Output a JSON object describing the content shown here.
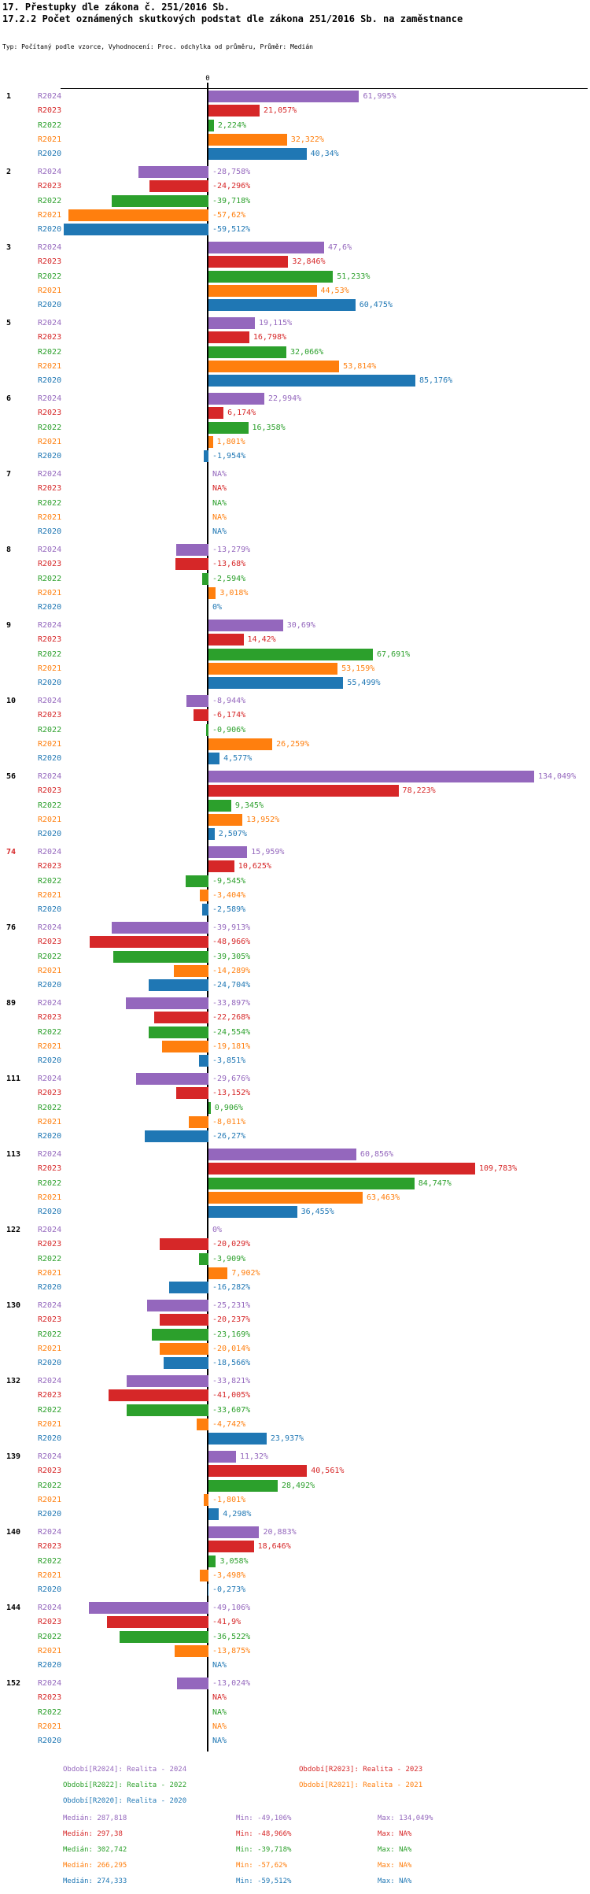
{
  "header": {
    "title": "17. Přestupky dle zákona č. 251/2016 Sb.",
    "subtitle": "17.2.2 Počet oznámených skutkových podstat dle zákona 251/2016 Sb. na zaměstnance",
    "meta": "Typ: Počítaný podle vzorce, Vyhodnocení: Proc. odchylka od průměru, Průměr: Medián"
  },
  "axis": {
    "zero_label": "0"
  },
  "chart_data": {
    "type": "bar",
    "orientation": "horizontal",
    "value_unit": "%",
    "axis_note": "values are percent deviation from median; bars left of zero line are negative",
    "series": [
      {
        "name": "R2024",
        "color": "#9467bd"
      },
      {
        "name": "R2023",
        "color": "#d62728"
      },
      {
        "name": "R2022",
        "color": "#2ca02c"
      },
      {
        "name": "R2021",
        "color": "#ff7f0e"
      },
      {
        "name": "R2020",
        "color": "#1f77b4"
      }
    ],
    "groups": [
      {
        "id": "1",
        "id_color": "#000000",
        "bars": [
          {
            "series": "R2024",
            "value": 61.995,
            "label": "61,995%"
          },
          {
            "series": "R2023",
            "value": 21.057,
            "label": "21,057%"
          },
          {
            "series": "R2022",
            "value": 2.224,
            "label": "2,224%"
          },
          {
            "series": "R2021",
            "value": 32.322,
            "label": "32,322%"
          },
          {
            "series": "R2020",
            "value": 40.34,
            "label": "40,34%"
          }
        ]
      },
      {
        "id": "2",
        "id_color": "#000000",
        "bars": [
          {
            "series": "R2024",
            "value": -28.758,
            "label": "-28,758%"
          },
          {
            "series": "R2023",
            "value": -24.296,
            "label": "-24,296%"
          },
          {
            "series": "R2022",
            "value": -39.718,
            "label": "-39,718%"
          },
          {
            "series": "R2021",
            "value": -57.62,
            "label": "-57,62%"
          },
          {
            "series": "R2020",
            "value": -59.512,
            "label": "-59,512%"
          }
        ]
      },
      {
        "id": "3",
        "id_color": "#000000",
        "bars": [
          {
            "series": "R2024",
            "value": 47.6,
            "label": "47,6%"
          },
          {
            "series": "R2023",
            "value": 32.846,
            "label": "32,846%"
          },
          {
            "series": "R2022",
            "value": 51.233,
            "label": "51,233%"
          },
          {
            "series": "R2021",
            "value": 44.53,
            "label": "44,53%"
          },
          {
            "series": "R2020",
            "value": 60.475,
            "label": "60,475%"
          }
        ]
      },
      {
        "id": "5",
        "id_color": "#000000",
        "bars": [
          {
            "series": "R2024",
            "value": 19.115,
            "label": "19,115%"
          },
          {
            "series": "R2023",
            "value": 16.798,
            "label": "16,798%"
          },
          {
            "series": "R2022",
            "value": 32.066,
            "label": "32,066%"
          },
          {
            "series": "R2021",
            "value": 53.814,
            "label": "53,814%"
          },
          {
            "series": "R2020",
            "value": 85.176,
            "label": "85,176%"
          }
        ]
      },
      {
        "id": "6",
        "id_color": "#000000",
        "bars": [
          {
            "series": "R2024",
            "value": 22.994,
            "label": "22,994%"
          },
          {
            "series": "R2023",
            "value": 6.174,
            "label": "6,174%"
          },
          {
            "series": "R2022",
            "value": 16.358,
            "label": "16,358%"
          },
          {
            "series": "R2021",
            "value": 1.801,
            "label": "1,801%"
          },
          {
            "series": "R2020",
            "value": -1.954,
            "label": "-1,954%"
          }
        ]
      },
      {
        "id": "7",
        "id_color": "#000000",
        "bars": [
          {
            "series": "R2024",
            "value": null,
            "label": "NA%"
          },
          {
            "series": "R2023",
            "value": null,
            "label": "NA%"
          },
          {
            "series": "R2022",
            "value": null,
            "label": "NA%"
          },
          {
            "series": "R2021",
            "value": null,
            "label": "NA%"
          },
          {
            "series": "R2020",
            "value": null,
            "label": "NA%"
          }
        ]
      },
      {
        "id": "8",
        "id_color": "#000000",
        "bars": [
          {
            "series": "R2024",
            "value": -13.279,
            "label": "-13,279%"
          },
          {
            "series": "R2023",
            "value": -13.68,
            "label": "-13,68%"
          },
          {
            "series": "R2022",
            "value": -2.594,
            "label": "-2,594%"
          },
          {
            "series": "R2021",
            "value": 3.018,
            "label": "3,018%"
          },
          {
            "series": "R2020",
            "value": 0,
            "label": "0%"
          }
        ]
      },
      {
        "id": "9",
        "id_color": "#000000",
        "bars": [
          {
            "series": "R2024",
            "value": 30.69,
            "label": "30,69%"
          },
          {
            "series": "R2023",
            "value": 14.42,
            "label": "14,42%"
          },
          {
            "series": "R2022",
            "value": 67.691,
            "label": "67,691%"
          },
          {
            "series": "R2021",
            "value": 53.159,
            "label": "53,159%"
          },
          {
            "series": "R2020",
            "value": 55.499,
            "label": "55,499%"
          }
        ]
      },
      {
        "id": "10",
        "id_color": "#000000",
        "bars": [
          {
            "series": "R2024",
            "value": -8.944,
            "label": "-8,944%"
          },
          {
            "series": "R2023",
            "value": -6.174,
            "label": "-6,174%"
          },
          {
            "series": "R2022",
            "value": -0.906,
            "label": "-0,906%"
          },
          {
            "series": "R2021",
            "value": 26.259,
            "label": "26,259%"
          },
          {
            "series": "R2020",
            "value": 4.577,
            "label": "4,577%"
          }
        ]
      },
      {
        "id": "56",
        "id_color": "#000000",
        "bars": [
          {
            "series": "R2024",
            "value": 134.049,
            "label": "134,049%"
          },
          {
            "series": "R2023",
            "value": 78.223,
            "label": "78,223%"
          },
          {
            "series": "R2022",
            "value": 9.345,
            "label": "9,345%"
          },
          {
            "series": "R2021",
            "value": 13.952,
            "label": "13,952%"
          },
          {
            "series": "R2020",
            "value": 2.507,
            "label": "2,507%"
          }
        ]
      },
      {
        "id": "74",
        "id_color": "#d62728",
        "bars": [
          {
            "series": "R2024",
            "value": 15.959,
            "label": "15,959%"
          },
          {
            "series": "R2023",
            "value": 10.625,
            "label": "10,625%"
          },
          {
            "series": "R2022",
            "value": -9.545,
            "label": "-9,545%"
          },
          {
            "series": "R2021",
            "value": -3.404,
            "label": "-3,404%"
          },
          {
            "series": "R2020",
            "value": -2.589,
            "label": "-2,589%"
          }
        ]
      },
      {
        "id": "76",
        "id_color": "#000000",
        "bars": [
          {
            "series": "R2024",
            "value": -39.913,
            "label": "-39,913%"
          },
          {
            "series": "R2023",
            "value": -48.966,
            "label": "-48,966%"
          },
          {
            "series": "R2022",
            "value": -39.305,
            "label": "-39,305%"
          },
          {
            "series": "R2021",
            "value": -14.289,
            "label": "-14,289%"
          },
          {
            "series": "R2020",
            "value": -24.704,
            "label": "-24,704%"
          }
        ]
      },
      {
        "id": "89",
        "id_color": "#000000",
        "bars": [
          {
            "series": "R2024",
            "value": -33.897,
            "label": "-33,897%"
          },
          {
            "series": "R2023",
            "value": -22.268,
            "label": "-22,268%"
          },
          {
            "series": "R2022",
            "value": -24.554,
            "label": "-24,554%"
          },
          {
            "series": "R2021",
            "value": -19.181,
            "label": "-19,181%"
          },
          {
            "series": "R2020",
            "value": -3.851,
            "label": "-3,851%"
          }
        ]
      },
      {
        "id": "111",
        "id_color": "#000000",
        "bars": [
          {
            "series": "R2024",
            "value": -29.676,
            "label": "-29,676%"
          },
          {
            "series": "R2023",
            "value": -13.152,
            "label": "-13,152%"
          },
          {
            "series": "R2022",
            "value": 0.906,
            "label": "0,906%"
          },
          {
            "series": "R2021",
            "value": -8.011,
            "label": "-8,011%"
          },
          {
            "series": "R2020",
            "value": -26.27,
            "label": "-26,27%"
          }
        ]
      },
      {
        "id": "113",
        "id_color": "#000000",
        "bars": [
          {
            "series": "R2024",
            "value": 60.856,
            "label": "60,856%"
          },
          {
            "series": "R2023",
            "value": 109.783,
            "label": "109,783%"
          },
          {
            "series": "R2022",
            "value": 84.747,
            "label": "84,747%"
          },
          {
            "series": "R2021",
            "value": 63.463,
            "label": "63,463%"
          },
          {
            "series": "R2020",
            "value": 36.455,
            "label": "36,455%"
          }
        ]
      },
      {
        "id": "122",
        "id_color": "#000000",
        "bars": [
          {
            "series": "R2024",
            "value": 0,
            "label": "0%"
          },
          {
            "series": "R2023",
            "value": -20.029,
            "label": "-20,029%"
          },
          {
            "series": "R2022",
            "value": -3.909,
            "label": "-3,909%"
          },
          {
            "series": "R2021",
            "value": 7.902,
            "label": "7,902%"
          },
          {
            "series": "R2020",
            "value": -16.282,
            "label": "-16,282%"
          }
        ]
      },
      {
        "id": "130",
        "id_color": "#000000",
        "bars": [
          {
            "series": "R2024",
            "value": -25.231,
            "label": "-25,231%"
          },
          {
            "series": "R2023",
            "value": -20.237,
            "label": "-20,237%"
          },
          {
            "series": "R2022",
            "value": -23.169,
            "label": "-23,169%"
          },
          {
            "series": "R2021",
            "value": -20.014,
            "label": "-20,014%"
          },
          {
            "series": "R2020",
            "value": -18.566,
            "label": "-18,566%"
          }
        ]
      },
      {
        "id": "132",
        "id_color": "#000000",
        "bars": [
          {
            "series": "R2024",
            "value": -33.821,
            "label": "-33,821%"
          },
          {
            "series": "R2023",
            "value": -41.005,
            "label": "-41,005%"
          },
          {
            "series": "R2022",
            "value": -33.607,
            "label": "-33,607%"
          },
          {
            "series": "R2021",
            "value": -4.742,
            "label": "-4,742%"
          },
          {
            "series": "R2020",
            "value": 23.937,
            "label": "23,937%"
          }
        ]
      },
      {
        "id": "139",
        "id_color": "#000000",
        "bars": [
          {
            "series": "R2024",
            "value": 11.32,
            "label": "11,32%"
          },
          {
            "series": "R2023",
            "value": 40.561,
            "label": "40,561%"
          },
          {
            "series": "R2022",
            "value": 28.492,
            "label": "28,492%"
          },
          {
            "series": "R2021",
            "value": -1.801,
            "label": "-1,801%"
          },
          {
            "series": "R2020",
            "value": 4.298,
            "label": "4,298%"
          }
        ]
      },
      {
        "id": "140",
        "id_color": "#000000",
        "bars": [
          {
            "series": "R2024",
            "value": 20.883,
            "label": "20,883%"
          },
          {
            "series": "R2023",
            "value": 18.646,
            "label": "18,646%"
          },
          {
            "series": "R2022",
            "value": 3.058,
            "label": "3,058%"
          },
          {
            "series": "R2021",
            "value": -3.498,
            "label": "-3,498%"
          },
          {
            "series": "R2020",
            "value": -0.273,
            "label": "-0,273%"
          }
        ]
      },
      {
        "id": "144",
        "id_color": "#000000",
        "bars": [
          {
            "series": "R2024",
            "value": -49.106,
            "label": "-49,106%"
          },
          {
            "series": "R2023",
            "value": -41.9,
            "label": "-41,9%"
          },
          {
            "series": "R2022",
            "value": -36.522,
            "label": "-36,522%"
          },
          {
            "series": "R2021",
            "value": -13.875,
            "label": "-13,875%"
          },
          {
            "series": "R2020",
            "value": null,
            "label": "NA%"
          }
        ]
      },
      {
        "id": "152",
        "id_color": "#000000",
        "bars": [
          {
            "series": "R2024",
            "value": -13.024,
            "label": "-13,024%"
          },
          {
            "series": "R2023",
            "value": null,
            "label": "NA%"
          },
          {
            "series": "R2022",
            "value": null,
            "label": "NA%"
          },
          {
            "series": "R2021",
            "value": null,
            "label": "NA%"
          },
          {
            "series": "R2020",
            "value": null,
            "label": "NA%"
          }
        ]
      }
    ]
  },
  "legend": {
    "items": [
      {
        "text": "Období[R2024]: Realita - 2024",
        "color": "#9467bd"
      },
      {
        "text": "Období[R2023]: Realita - 2023",
        "color": "#d62728"
      },
      {
        "text": "Období[R2022]: Realita - 2022",
        "color": "#2ca02c"
      },
      {
        "text": "Období[R2021]: Realita - 2021",
        "color": "#ff7f0e"
      },
      {
        "text": "Období[R2020]: Realita - 2020",
        "color": "#1f77b4"
      }
    ]
  },
  "stats": {
    "rows": [
      {
        "median": "Medián: 287,818",
        "min": "Min: -49,106%",
        "max": "Max: 134,049%",
        "color": "#9467bd"
      },
      {
        "median": "Medián: 297,38",
        "min": "Min: -48,966%",
        "max": "Max: NA%",
        "color": "#d62728"
      },
      {
        "median": "Medián: 302,742",
        "min": "Min: -39,718%",
        "max": "Max: NA%",
        "color": "#2ca02c"
      },
      {
        "median": "Medián: 266,295",
        "min": "Min: -57,62%",
        "max": "Max: NA%",
        "color": "#ff7f0e"
      },
      {
        "median": "Medián: 274,333",
        "min": "Min: -59,512%",
        "max": "Max: NA%",
        "color": "#1f77b4"
      }
    ]
  }
}
